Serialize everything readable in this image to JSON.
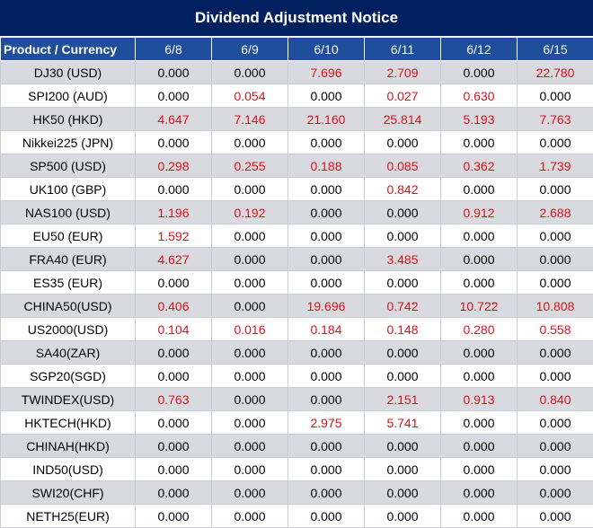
{
  "title": "Dividend Adjustment Notice",
  "header": [
    "Product / Currency",
    "6/8",
    "6/9",
    "6/10",
    "6/11",
    "6/12",
    "6/15"
  ],
  "colors": {
    "title_bg": "#002060",
    "header_bg": "#1f4e9c",
    "alt_row": "#d9dae0",
    "highlight": "#e0101a"
  },
  "rows": [
    {
      "product": "DJ30 (USD)",
      "values": [
        "0.000",
        "0.000",
        "7.696",
        "2.709",
        "0.000",
        "22.780"
      ]
    },
    {
      "product": "SPI200 (AUD)",
      "values": [
        "0.000",
        "0.054",
        "0.000",
        "0.027",
        "0.630",
        "0.000"
      ]
    },
    {
      "product": "HK50 (HKD)",
      "values": [
        "4.647",
        "7.146",
        "21.160",
        "25.814",
        "5.193",
        "7.763"
      ]
    },
    {
      "product": "Nikkei225 (JPN)",
      "values": [
        "0.000",
        "0.000",
        "0.000",
        "0.000",
        "0.000",
        "0.000"
      ]
    },
    {
      "product": "SP500 (USD)",
      "values": [
        "0.298",
        "0.255",
        "0.188",
        "0.085",
        "0.362",
        "1.739"
      ]
    },
    {
      "product": "UK100 (GBP)",
      "values": [
        "0.000",
        "0.000",
        "0.000",
        "0.842",
        "0.000",
        "0.000"
      ]
    },
    {
      "product": "NAS100 (USD)",
      "values": [
        "1.196",
        "0.192",
        "0.000",
        "0.000",
        "0.912",
        "2.688"
      ]
    },
    {
      "product": "EU50 (EUR)",
      "values": [
        "1.592",
        "0.000",
        "0.000",
        "0.000",
        "0.000",
        "0.000"
      ]
    },
    {
      "product": "FRA40 (EUR)",
      "values": [
        "4.627",
        "0.000",
        "0.000",
        "3.485",
        "0.000",
        "0.000"
      ]
    },
    {
      "product": "ES35 (EUR)",
      "values": [
        "0.000",
        "0.000",
        "0.000",
        "0.000",
        "0.000",
        "0.000"
      ]
    },
    {
      "product": "CHINA50(USD)",
      "values": [
        "0.406",
        "0.000",
        "19.696",
        "0.742",
        "10.722",
        "10.808"
      ]
    },
    {
      "product": "US2000(USD)",
      "values": [
        "0.104",
        "0.016",
        "0.184",
        "0.148",
        "0.280",
        "0.558"
      ]
    },
    {
      "product": "SA40(ZAR)",
      "values": [
        "0.000",
        "0.000",
        "0.000",
        "0.000",
        "0.000",
        "0.000"
      ]
    },
    {
      "product": "SGP20(SGD)",
      "values": [
        "0.000",
        "0.000",
        "0.000",
        "0.000",
        "0.000",
        "0.000"
      ]
    },
    {
      "product": "TWINDEX(USD)",
      "values": [
        "0.763",
        "0.000",
        "0.000",
        "2.151",
        "0.913",
        "0.840"
      ]
    },
    {
      "product": "HKTECH(HKD)",
      "values": [
        "0.000",
        "0.000",
        "2.975",
        "5.741",
        "0.000",
        "0.000"
      ]
    },
    {
      "product": "CHINAH(HKD)",
      "values": [
        "0.000",
        "0.000",
        "0.000",
        "0.000",
        "0.000",
        "0.000"
      ]
    },
    {
      "product": "IND50(USD)",
      "values": [
        "0.000",
        "0.000",
        "0.000",
        "0.000",
        "0.000",
        "0.000"
      ]
    },
    {
      "product": "SWI20(CHF)",
      "values": [
        "0.000",
        "0.000",
        "0.000",
        "0.000",
        "0.000",
        "0.000"
      ]
    },
    {
      "product": "NETH25(EUR)",
      "values": [
        "0.000",
        "0.000",
        "0.000",
        "0.000",
        "0.000",
        "0.000"
      ]
    }
  ]
}
